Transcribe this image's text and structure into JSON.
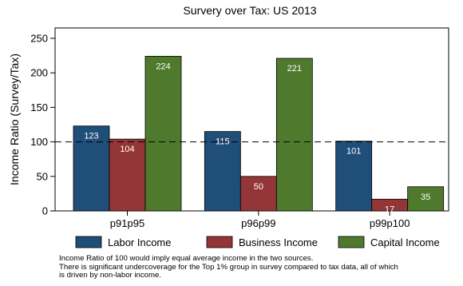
{
  "chart_data": {
    "type": "bar",
    "title": "Survery over Tax: US 2013",
    "ylabel": "Income Ratio (Survey/Tax)",
    "xlabel": "",
    "ylim": [
      0,
      265
    ],
    "yticks": [
      0,
      50,
      100,
      150,
      200,
      250
    ],
    "reference_line": 100,
    "categories": [
      "p91p95",
      "p96p99",
      "p99p100"
    ],
    "series": [
      {
        "name": "Labor Income",
        "values": [
          123,
          115,
          101
        ],
        "color": "#1f4e79"
      },
      {
        "name": "Business Income",
        "values": [
          104,
          50,
          17
        ],
        "color": "#943637"
      },
      {
        "name": "Capital Income",
        "values": [
          224,
          221,
          35
        ],
        "color": "#4f7a2e"
      }
    ],
    "legend_position": "bottom",
    "grid": false
  },
  "notes": [
    "Income Ratio of 100 would imply equal average income in the two sources.",
    "There is significant undercoverage for the Top 1% group in survey compared to tax data, all of which",
    "is driven by non-labor income."
  ]
}
